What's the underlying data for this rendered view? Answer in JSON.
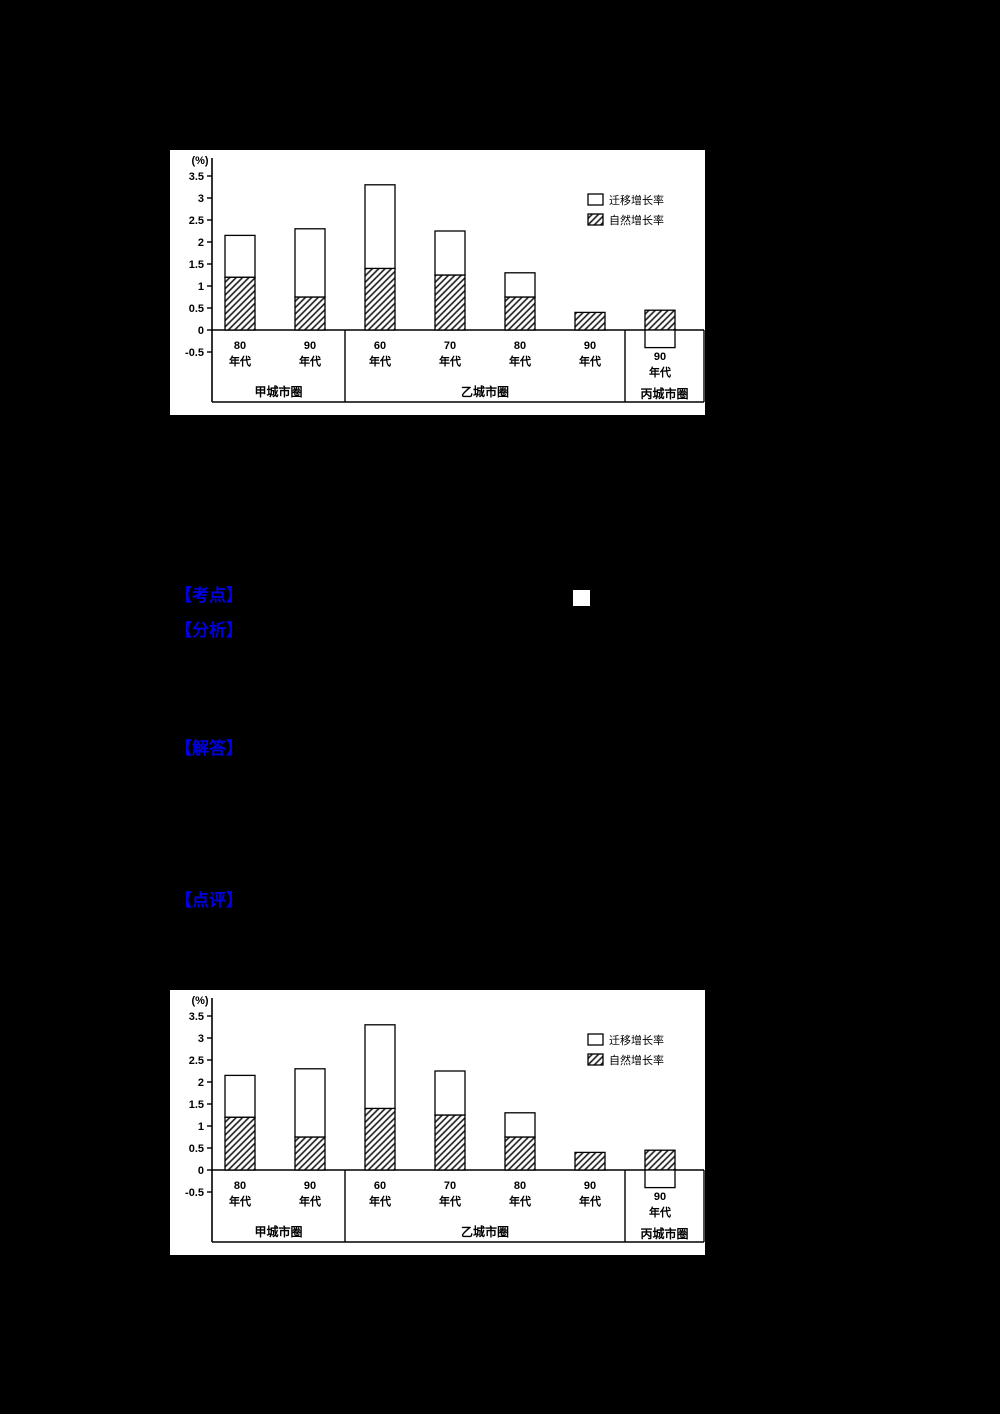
{
  "page": {
    "background_color": "#000000"
  },
  "document": {
    "header_color": "#0000e0",
    "sections": [
      {
        "id": "kaodian",
        "label": "【考点】"
      },
      {
        "id": "fenxi",
        "label": "【分析】"
      },
      {
        "id": "jieda",
        "label": "【解答】"
      },
      {
        "id": "dianping",
        "label": "【点评】"
      }
    ],
    "icons": {
      "white_square_marker": "white filled square"
    }
  },
  "chart_data": [
    {
      "type": "bar",
      "stacked": true,
      "title": "",
      "ylabel": "(%)",
      "xlabel": "",
      "ylim": [
        -0.5,
        3.5
      ],
      "yticks": [
        3.5,
        3,
        2.5,
        2,
        1.5,
        1,
        0.5,
        0,
        -0.5
      ],
      "grid": false,
      "legend_position": "top-right",
      "legend": [
        {
          "label": "迁移增长率",
          "style": "white"
        },
        {
          "label": "自然增长率",
          "style": "hatched"
        }
      ],
      "groups": [
        {
          "label": "甲城市圈",
          "categories": [
            "80年代",
            "90年代"
          ]
        },
        {
          "label": "乙城市圈",
          "categories": [
            "60年代",
            "70年代",
            "80年代",
            "90年代"
          ]
        },
        {
          "label": "丙城市圈",
          "categories": [
            "90年代"
          ]
        }
      ],
      "series": [
        {
          "name": "自然增长率",
          "style": "hatched",
          "values": [
            1.2,
            0.75,
            1.4,
            1.25,
            0.75,
            0.4,
            0.45
          ]
        },
        {
          "name": "迁移增长率",
          "style": "white",
          "values": [
            0.95,
            1.55,
            1.9,
            1.0,
            0.55,
            0,
            -0.4
          ]
        }
      ]
    },
    {
      "type": "bar",
      "stacked": true,
      "title": "",
      "ylabel": "(%)",
      "xlabel": "",
      "ylim": [
        -0.5,
        3.5
      ],
      "yticks": [
        3.5,
        3,
        2.5,
        2,
        1.5,
        1,
        0.5,
        0,
        -0.5
      ],
      "grid": false,
      "legend_position": "top-right",
      "legend": [
        {
          "label": "迁移增长率",
          "style": "white"
        },
        {
          "label": "自然增长率",
          "style": "hatched"
        }
      ],
      "groups": [
        {
          "label": "甲城市圈",
          "categories": [
            "80年代",
            "90年代"
          ]
        },
        {
          "label": "乙城市圈",
          "categories": [
            "60年代",
            "70年代",
            "80年代",
            "90年代"
          ]
        },
        {
          "label": "丙城市圈",
          "categories": [
            "90年代"
          ]
        }
      ],
      "series": [
        {
          "name": "自然增长率",
          "style": "hatched",
          "values": [
            1.2,
            0.75,
            1.4,
            1.25,
            0.75,
            0.4,
            0.45
          ]
        },
        {
          "name": "迁移增长率",
          "style": "white",
          "values": [
            0.95,
            1.55,
            1.9,
            1.0,
            0.55,
            0,
            -0.4
          ]
        }
      ]
    }
  ]
}
